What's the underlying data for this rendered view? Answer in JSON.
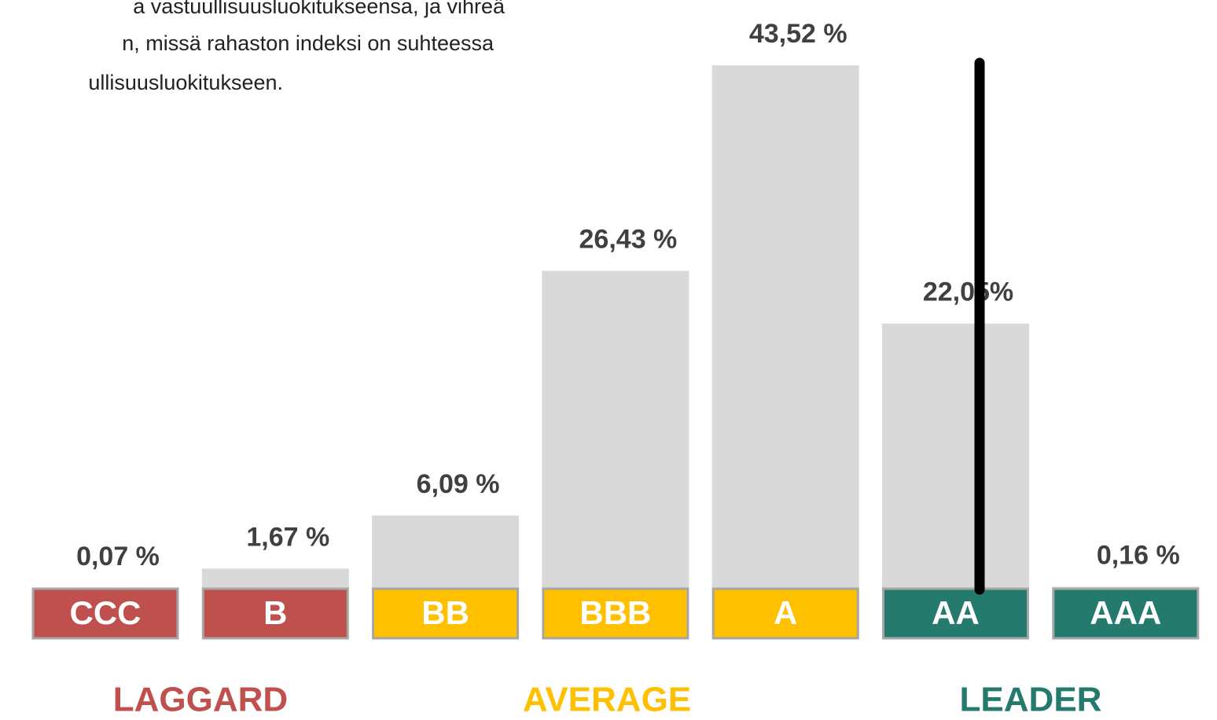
{
  "chart_data": {
    "type": "bar",
    "annotations": [
      "a vastuullisuusluokitukseensa, ja vihreä",
      "n, missä rahaston indeksi on suhteessa",
      "ullisuusluokitukseen."
    ],
    "categories": [
      "CCC",
      "B",
      "BB",
      "BBB",
      "A",
      "AA",
      "AAA"
    ],
    "values": [
      0.07,
      1.67,
      6.09,
      26.43,
      43.52,
      22.05,
      0.16
    ],
    "value_labels": [
      "0,07 %",
      "1,67 %",
      "6,09 %",
      "26,43 %",
      "43,52 %",
      "22,05%",
      "0,16 %"
    ],
    "color": "#d9d9d9",
    "category_colors": [
      "#c0504d",
      "#c0504d",
      "#ffc000",
      "#ffc000",
      "#ffc000",
      "#257a6e",
      "#257a6e"
    ],
    "groups": [
      {
        "name": "LAGGARD",
        "color": "#c0504d"
      },
      {
        "name": "AVERAGE",
        "color": "#ffc000"
      },
      {
        "name": "LEADER",
        "color": "#257a6e"
      }
    ]
  }
}
